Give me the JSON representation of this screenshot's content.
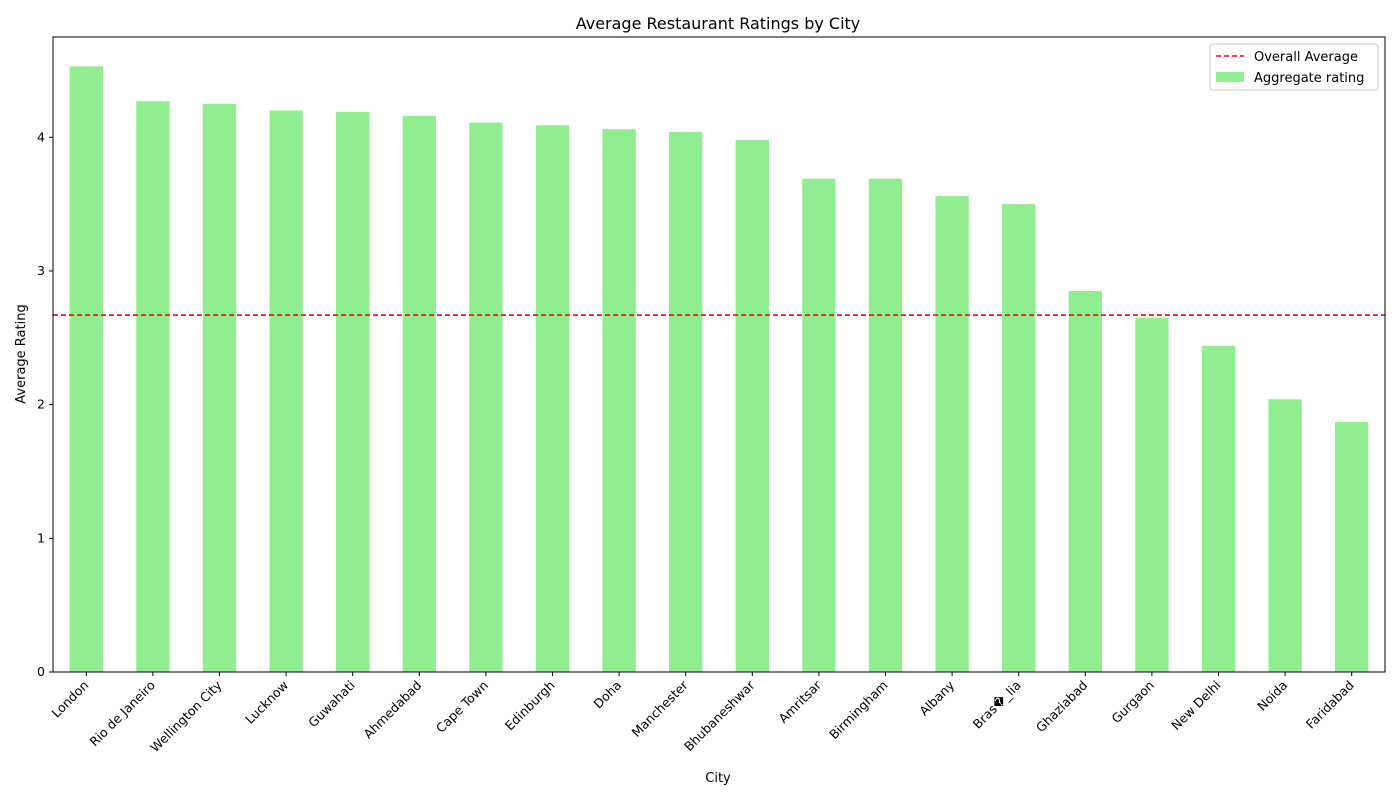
{
  "chart_data": {
    "type": "bar",
    "title": "Average Restaurant Ratings by City",
    "xlabel": "City",
    "ylabel": "Average Rating",
    "ylim": [
      0,
      4.75
    ],
    "yticks": [
      0,
      1,
      2,
      3,
      4
    ],
    "grid": false,
    "legend_position": "top-right",
    "categories": [
      "London",
      "Rio de Janeiro",
      "Wellington City",
      "Lucknow",
      "Guwahati",
      "Ahmedabad",
      "Cape Town",
      "Edinburgh",
      "Doha",
      "Manchester",
      "Bhubaneshwar",
      "Amritsar",
      "Birmingham",
      "Albany",
      "Bras�_lia",
      "Ghaziabad",
      "Gurgaon",
      "New Delhi",
      "Noida",
      "Faridabad"
    ],
    "series": [
      {
        "name": "Aggregate rating",
        "color": "#90ee90",
        "values": [
          4.53,
          4.27,
          4.25,
          4.2,
          4.19,
          4.16,
          4.11,
          4.09,
          4.06,
          4.04,
          3.98,
          3.69,
          3.69,
          3.56,
          3.5,
          2.85,
          2.65,
          2.44,
          2.04,
          1.87
        ]
      }
    ],
    "reference_line": {
      "name": "Overall Average",
      "value": 2.67,
      "color": "#ff0000",
      "style": "dashed"
    }
  }
}
